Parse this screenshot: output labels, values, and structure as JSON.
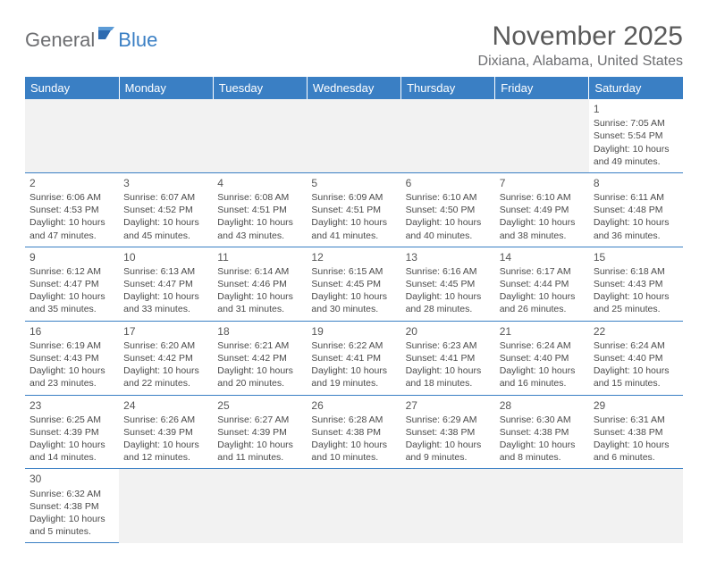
{
  "logo": {
    "part1": "General",
    "part2": "Blue"
  },
  "title": "November 2025",
  "location": "Dixiana, Alabama, United States",
  "colors": {
    "header_bg": "#3a7fc4",
    "header_text": "#ffffff",
    "body_text": "#4a4a4a",
    "title_text": "#5a5a5a",
    "logo_gray": "#6d6e71",
    "logo_blue": "#3a7fc4",
    "grid_line": "#3a7fc4",
    "empty_bg": "#f2f2f2"
  },
  "weekdays": [
    "Sunday",
    "Monday",
    "Tuesday",
    "Wednesday",
    "Thursday",
    "Friday",
    "Saturday"
  ],
  "startOffset": 6,
  "days": [
    {
      "n": 1,
      "sr": "7:05 AM",
      "ss": "5:54 PM",
      "dl": "10 hours and 49 minutes."
    },
    {
      "n": 2,
      "sr": "6:06 AM",
      "ss": "4:53 PM",
      "dl": "10 hours and 47 minutes."
    },
    {
      "n": 3,
      "sr": "6:07 AM",
      "ss": "4:52 PM",
      "dl": "10 hours and 45 minutes."
    },
    {
      "n": 4,
      "sr": "6:08 AM",
      "ss": "4:51 PM",
      "dl": "10 hours and 43 minutes."
    },
    {
      "n": 5,
      "sr": "6:09 AM",
      "ss": "4:51 PM",
      "dl": "10 hours and 41 minutes."
    },
    {
      "n": 6,
      "sr": "6:10 AM",
      "ss": "4:50 PM",
      "dl": "10 hours and 40 minutes."
    },
    {
      "n": 7,
      "sr": "6:10 AM",
      "ss": "4:49 PM",
      "dl": "10 hours and 38 minutes."
    },
    {
      "n": 8,
      "sr": "6:11 AM",
      "ss": "4:48 PM",
      "dl": "10 hours and 36 minutes."
    },
    {
      "n": 9,
      "sr": "6:12 AM",
      "ss": "4:47 PM",
      "dl": "10 hours and 35 minutes."
    },
    {
      "n": 10,
      "sr": "6:13 AM",
      "ss": "4:47 PM",
      "dl": "10 hours and 33 minutes."
    },
    {
      "n": 11,
      "sr": "6:14 AM",
      "ss": "4:46 PM",
      "dl": "10 hours and 31 minutes."
    },
    {
      "n": 12,
      "sr": "6:15 AM",
      "ss": "4:45 PM",
      "dl": "10 hours and 30 minutes."
    },
    {
      "n": 13,
      "sr": "6:16 AM",
      "ss": "4:45 PM",
      "dl": "10 hours and 28 minutes."
    },
    {
      "n": 14,
      "sr": "6:17 AM",
      "ss": "4:44 PM",
      "dl": "10 hours and 26 minutes."
    },
    {
      "n": 15,
      "sr": "6:18 AM",
      "ss": "4:43 PM",
      "dl": "10 hours and 25 minutes."
    },
    {
      "n": 16,
      "sr": "6:19 AM",
      "ss": "4:43 PM",
      "dl": "10 hours and 23 minutes."
    },
    {
      "n": 17,
      "sr": "6:20 AM",
      "ss": "4:42 PM",
      "dl": "10 hours and 22 minutes."
    },
    {
      "n": 18,
      "sr": "6:21 AM",
      "ss": "4:42 PM",
      "dl": "10 hours and 20 minutes."
    },
    {
      "n": 19,
      "sr": "6:22 AM",
      "ss": "4:41 PM",
      "dl": "10 hours and 19 minutes."
    },
    {
      "n": 20,
      "sr": "6:23 AM",
      "ss": "4:41 PM",
      "dl": "10 hours and 18 minutes."
    },
    {
      "n": 21,
      "sr": "6:24 AM",
      "ss": "4:40 PM",
      "dl": "10 hours and 16 minutes."
    },
    {
      "n": 22,
      "sr": "6:24 AM",
      "ss": "4:40 PM",
      "dl": "10 hours and 15 minutes."
    },
    {
      "n": 23,
      "sr": "6:25 AM",
      "ss": "4:39 PM",
      "dl": "10 hours and 14 minutes."
    },
    {
      "n": 24,
      "sr": "6:26 AM",
      "ss": "4:39 PM",
      "dl": "10 hours and 12 minutes."
    },
    {
      "n": 25,
      "sr": "6:27 AM",
      "ss": "4:39 PM",
      "dl": "10 hours and 11 minutes."
    },
    {
      "n": 26,
      "sr": "6:28 AM",
      "ss": "4:38 PM",
      "dl": "10 hours and 10 minutes."
    },
    {
      "n": 27,
      "sr": "6:29 AM",
      "ss": "4:38 PM",
      "dl": "10 hours and 9 minutes."
    },
    {
      "n": 28,
      "sr": "6:30 AM",
      "ss": "4:38 PM",
      "dl": "10 hours and 8 minutes."
    },
    {
      "n": 29,
      "sr": "6:31 AM",
      "ss": "4:38 PM",
      "dl": "10 hours and 6 minutes."
    },
    {
      "n": 30,
      "sr": "6:32 AM",
      "ss": "4:38 PM",
      "dl": "10 hours and 5 minutes."
    }
  ],
  "labels": {
    "sunrise": "Sunrise:",
    "sunset": "Sunset:",
    "daylight": "Daylight:"
  }
}
